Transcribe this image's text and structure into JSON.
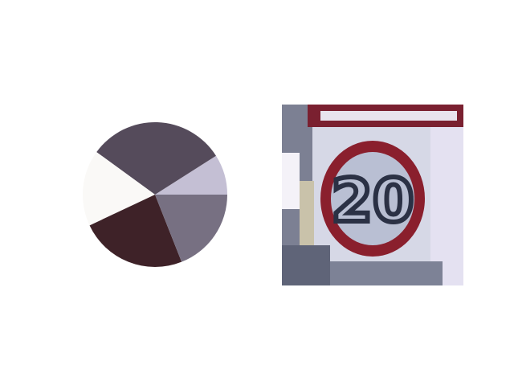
{
  "chart_data": {
    "type": "pie",
    "title": "",
    "start_angle_deg": 0,
    "direction": "counterclockwise",
    "slices": [
      {
        "value": 9,
        "color": "#c4bfd4"
      },
      {
        "value": 31,
        "color": "#554b5b"
      },
      {
        "value": 17,
        "color": "#faf9f7"
      },
      {
        "value": 24,
        "color": "#3e2228"
      },
      {
        "value": 19,
        "color": "#777082"
      }
    ]
  },
  "image": {
    "subject": "speed-limit-sign-icon",
    "sign_text": "20",
    "colors": {
      "ring": "#8a1f2d",
      "face": "#b9bfd3",
      "digits": "#2b3145",
      "background": "#d9dbe8",
      "post": "#6f7286"
    }
  }
}
